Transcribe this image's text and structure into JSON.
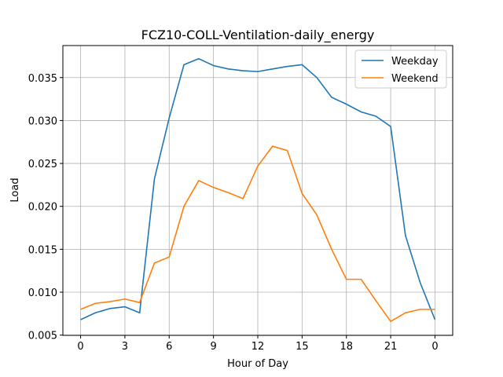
{
  "chart_data": {
    "type": "line",
    "title": "FCZ10-COLL-Ventilation-daily_energy",
    "x_label": "Hour of Day",
    "y_label": "Load",
    "x": [
      0,
      1,
      2,
      3,
      4,
      5,
      6,
      7,
      8,
      9,
      10,
      11,
      12,
      13,
      14,
      15,
      16,
      17,
      18,
      19,
      20,
      21,
      22,
      23,
      24
    ],
    "series": [
      {
        "name": "Weekday",
        "color": "#1f77b4",
        "values": [
          0.0068,
          0.0076,
          0.0081,
          0.0083,
          0.0076,
          0.0232,
          0.0303,
          0.0365,
          0.0372,
          0.0364,
          0.036,
          0.0358,
          0.0357,
          0.036,
          0.0363,
          0.0365,
          0.035,
          0.0327,
          0.0319,
          0.031,
          0.0305,
          0.0293,
          0.0166,
          0.0111,
          0.0068
        ]
      },
      {
        "name": "Weekend",
        "color": "#ff7f0e",
        "values": [
          0.008,
          0.0087,
          0.0089,
          0.0092,
          0.0088,
          0.0134,
          0.0141,
          0.02,
          0.023,
          0.0222,
          0.0216,
          0.0209,
          0.0247,
          0.027,
          0.0265,
          0.0215,
          0.019,
          0.015,
          0.0115,
          0.0115,
          0.009,
          0.0066,
          0.0076,
          0.008,
          0.008
        ]
      }
    ],
    "xlim": [
      -1.2,
      25.2
    ],
    "xticks": [
      0,
      3,
      6,
      9,
      12,
      15,
      18,
      21,
      {
        "value": 24,
        "label": "0"
      }
    ],
    "ylim": [
      0.00497,
      0.03873
    ],
    "yticks": [
      0.005,
      {
        "value": 0.01,
        "label": "0.010"
      },
      0.015,
      {
        "value": 0.02,
        "label": "0.020"
      },
      0.025,
      {
        "value": 0.03,
        "label": "0.030"
      },
      0.035
    ],
    "grid": true,
    "legend": "upper-right"
  }
}
